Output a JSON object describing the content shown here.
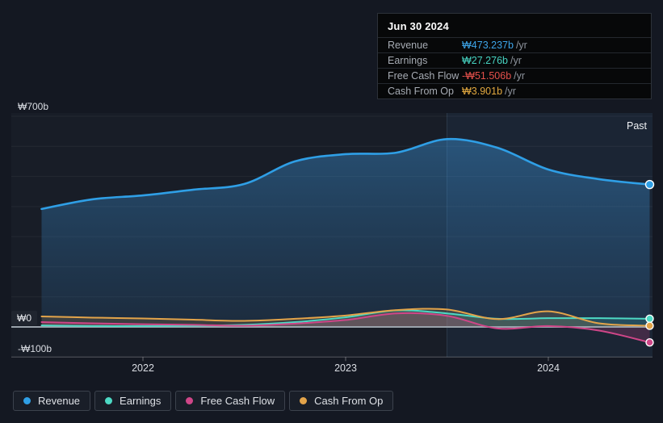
{
  "tooltip": {
    "date": "Jun 30 2024",
    "rows": [
      {
        "label": "Revenue",
        "value": "₩473.237b",
        "unit": "/yr",
        "color": "#3da4e8"
      },
      {
        "label": "Earnings",
        "value": "₩27.276b",
        "unit": "/yr",
        "color": "#46d2c0"
      },
      {
        "label": "Free Cash Flow",
        "value": "-₩51.506b",
        "unit": "/yr",
        "color": "#e4504b"
      },
      {
        "label": "Cash From Op",
        "value": "₩3.901b",
        "unit": "/yr",
        "color": "#e2a83f"
      }
    ]
  },
  "axis": {
    "y_labels": [
      "₩700b",
      "₩0",
      "-₩100b"
    ],
    "x_labels": [
      "2022",
      "2023",
      "2024"
    ]
  },
  "past_label": "Past",
  "legend": [
    {
      "label": "Revenue",
      "color": "#2f9fe6"
    },
    {
      "label": "Earnings",
      "color": "#4dd9c4"
    },
    {
      "label": "Free Cash Flow",
      "color": "#cf4688"
    },
    {
      "label": "Cash From Op",
      "color": "#e3a44a"
    }
  ],
  "chart_data": {
    "type": "line",
    "y_unit": "₩ billions per year",
    "ylim": [
      -100,
      710
    ],
    "y_gridline_values": [
      700,
      600,
      500,
      400,
      300,
      200,
      100
    ],
    "y_zero": 0,
    "y_bottom": -100,
    "x_tick_years": [
      2022,
      2023,
      2024
    ],
    "past_region_start_year": 2023.5,
    "x_dates": [
      "2021-06-30",
      "2021-09-30",
      "2021-12-31",
      "2022-03-31",
      "2022-06-30",
      "2022-09-30",
      "2022-12-31",
      "2023-03-31",
      "2023-06-30",
      "2023-09-30",
      "2023-12-31",
      "2024-03-31",
      "2024-06-30"
    ],
    "x_years": [
      2021.5,
      2021.75,
      2022.0,
      2022.25,
      2022.5,
      2022.75,
      2023.0,
      2023.25,
      2023.5,
      2023.75,
      2024.0,
      2024.25,
      2024.5
    ],
    "series": [
      {
        "name": "Revenue",
        "color": "#2f9fe6",
        "fill": "gradient",
        "values": [
          392,
          424,
          437,
          456,
          475,
          550,
          574,
          579,
          624,
          595,
          523,
          491,
          473.237
        ]
      },
      {
        "name": "Earnings",
        "color": "#4dd9c4",
        "fill": "rgba(77,217,196,0.16)",
        "values": [
          5,
          3,
          3,
          4,
          7,
          16,
          32,
          55,
          45,
          27,
          29,
          29,
          27.276
        ]
      },
      {
        "name": "Free Cash Flow",
        "color": "#cf4688",
        "fill": "rgba(207,70,136,0.22)",
        "values": [
          16,
          12,
          9,
          7,
          4,
          11,
          23,
          45,
          37,
          -5,
          3,
          -12,
          -51.506
        ]
      },
      {
        "name": "Cash From Op",
        "color": "#e3a44a",
        "fill": "rgba(227,164,74,0.16)",
        "values": [
          35,
          31,
          28,
          24,
          20,
          27,
          38,
          56,
          58,
          26,
          52,
          12,
          3.901
        ]
      }
    ]
  }
}
